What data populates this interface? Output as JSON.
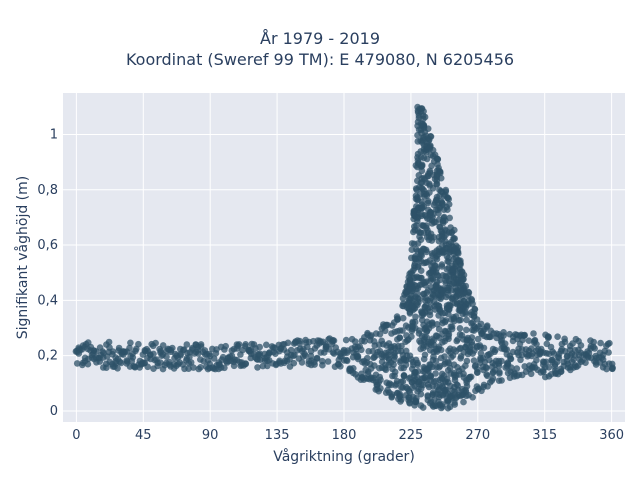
{
  "chart_data": {
    "type": "scatter",
    "title": "År 1979 - 2019",
    "subtitle": "Koordinat (Sweref 99 TM): E 479080, N 6205456",
    "xlabel": "Vågriktning (grader)",
    "ylabel": "Signifikant våghöjd (m)",
    "xlim": [
      -9,
      369
    ],
    "ylim": [
      -0.04,
      1.15
    ],
    "xticks": [
      0,
      45,
      90,
      135,
      180,
      225,
      270,
      315,
      360
    ],
    "xtick_labels": [
      "0",
      "45",
      "90",
      "135",
      "180",
      "225",
      "270",
      "315",
      "360"
    ],
    "yticks": [
      0,
      0.2,
      0.4,
      0.6,
      0.8,
      1
    ],
    "ytick_labels": [
      "0",
      "0,2",
      "0,4",
      "0,6",
      "0,8",
      "1"
    ],
    "grid": true,
    "marker_color": "#2e5268",
    "plot_background": "#e5e8f0",
    "envelope": {
      "x": [
        0,
        45,
        90,
        135,
        180,
        200,
        215,
        225,
        230,
        233,
        237,
        240,
        245,
        250,
        255,
        260,
        265,
        270,
        280,
        300,
        315,
        340,
        360
      ],
      "y_min": [
        0.16,
        0.15,
        0.15,
        0.16,
        0.16,
        0.08,
        0.04,
        0.02,
        0.01,
        0.01,
        0.01,
        0.01,
        0.01,
        0.01,
        0.02,
        0.03,
        0.04,
        0.06,
        0.1,
        0.13,
        0.12,
        0.15,
        0.15
      ],
      "y_max": [
        0.25,
        0.25,
        0.24,
        0.25,
        0.27,
        0.29,
        0.35,
        0.52,
        1.1,
        1.1,
        1.05,
        0.98,
        0.87,
        0.78,
        0.63,
        0.51,
        0.42,
        0.35,
        0.29,
        0.28,
        0.28,
        0.26,
        0.25
      ]
    }
  }
}
